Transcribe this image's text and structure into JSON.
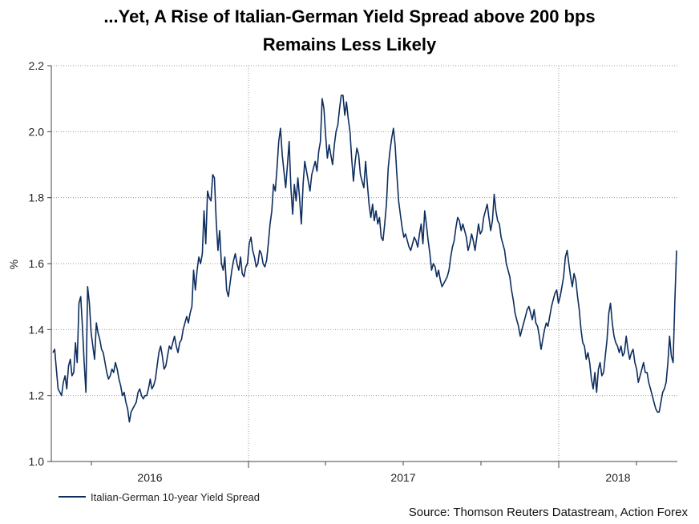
{
  "chart_data": {
    "type": "line",
    "title": "...Yet, A Rise of Italian-German Yield Spread above 200 bps",
    "subtitle": "Remains Less Likely",
    "ylabel": "%",
    "xlabel": "",
    "ylim": [
      1.0,
      2.2
    ],
    "yticks": [
      "1.0",
      "1.2",
      "1.4",
      "1.6",
      "1.8",
      "2.0",
      "2.2"
    ],
    "year_labels": [
      "2016",
      "2017",
      "2018"
    ],
    "grid": true,
    "legend_position": "bottom-left",
    "series": [
      {
        "name": "Italian-German 10-year Yield Spread",
        "color": "#0d2d5e",
        "values": [
          1.33,
          1.34,
          1.28,
          1.22,
          1.21,
          1.2,
          1.24,
          1.26,
          1.22,
          1.29,
          1.31,
          1.26,
          1.27,
          1.36,
          1.3,
          1.48,
          1.5,
          1.41,
          1.3,
          1.21,
          1.53,
          1.48,
          1.39,
          1.35,
          1.31,
          1.42,
          1.39,
          1.37,
          1.34,
          1.33,
          1.3,
          1.27,
          1.25,
          1.26,
          1.28,
          1.27,
          1.3,
          1.28,
          1.25,
          1.23,
          1.2,
          1.21,
          1.18,
          1.16,
          1.12,
          1.15,
          1.16,
          1.17,
          1.18,
          1.21,
          1.22,
          1.2,
          1.19,
          1.2,
          1.2,
          1.22,
          1.25,
          1.22,
          1.23,
          1.25,
          1.29,
          1.33,
          1.35,
          1.32,
          1.28,
          1.29,
          1.32,
          1.35,
          1.34,
          1.36,
          1.38,
          1.35,
          1.33,
          1.36,
          1.37,
          1.4,
          1.42,
          1.44,
          1.42,
          1.45,
          1.47,
          1.58,
          1.52,
          1.58,
          1.62,
          1.6,
          1.63,
          1.76,
          1.66,
          1.82,
          1.8,
          1.79,
          1.87,
          1.86,
          1.73,
          1.64,
          1.7,
          1.6,
          1.58,
          1.62,
          1.52,
          1.5,
          1.54,
          1.58,
          1.61,
          1.63,
          1.6,
          1.58,
          1.62,
          1.57,
          1.56,
          1.59,
          1.6,
          1.66,
          1.68,
          1.64,
          1.62,
          1.59,
          1.6,
          1.64,
          1.63,
          1.6,
          1.59,
          1.61,
          1.66,
          1.72,
          1.76,
          1.84,
          1.82,
          1.89,
          1.97,
          2.01,
          1.93,
          1.88,
          1.83,
          1.9,
          1.97,
          1.83,
          1.75,
          1.84,
          1.79,
          1.86,
          1.8,
          1.72,
          1.84,
          1.91,
          1.88,
          1.85,
          1.82,
          1.87,
          1.89,
          1.91,
          1.88,
          1.94,
          1.97,
          2.1,
          2.07,
          1.99,
          1.92,
          1.96,
          1.93,
          1.9,
          1.96,
          2.0,
          2.02,
          2.07,
          2.11,
          2.11,
          2.05,
          2.09,
          2.04,
          2.0,
          1.92,
          1.85,
          1.91,
          1.95,
          1.93,
          1.87,
          1.85,
          1.83,
          1.91,
          1.84,
          1.78,
          1.74,
          1.78,
          1.73,
          1.76,
          1.72,
          1.74,
          1.68,
          1.67,
          1.72,
          1.78,
          1.89,
          1.94,
          1.98,
          2.01,
          1.96,
          1.87,
          1.79,
          1.75,
          1.71,
          1.68,
          1.69,
          1.67,
          1.65,
          1.64,
          1.66,
          1.68,
          1.67,
          1.65,
          1.69,
          1.72,
          1.66,
          1.76,
          1.72,
          1.67,
          1.63,
          1.58,
          1.6,
          1.59,
          1.56,
          1.58,
          1.55,
          1.53,
          1.54,
          1.55,
          1.56,
          1.58,
          1.62,
          1.65,
          1.67,
          1.71,
          1.74,
          1.73,
          1.7,
          1.72,
          1.7,
          1.68,
          1.64,
          1.66,
          1.69,
          1.67,
          1.64,
          1.68,
          1.72,
          1.69,
          1.7,
          1.74,
          1.76,
          1.78,
          1.74,
          1.7,
          1.73,
          1.81,
          1.76,
          1.73,
          1.72,
          1.68,
          1.66,
          1.64,
          1.6,
          1.58,
          1.56,
          1.52,
          1.49,
          1.45,
          1.43,
          1.41,
          1.38,
          1.4,
          1.42,
          1.44,
          1.46,
          1.47,
          1.45,
          1.43,
          1.46,
          1.42,
          1.41,
          1.38,
          1.34,
          1.37,
          1.4,
          1.42,
          1.41,
          1.44,
          1.47,
          1.49,
          1.51,
          1.52,
          1.48,
          1.5,
          1.53,
          1.56,
          1.62,
          1.64,
          1.6,
          1.56,
          1.53,
          1.57,
          1.55,
          1.5,
          1.46,
          1.4,
          1.36,
          1.35,
          1.31,
          1.33,
          1.3,
          1.25,
          1.22,
          1.27,
          1.21,
          1.28,
          1.3,
          1.26,
          1.27,
          1.32,
          1.37,
          1.45,
          1.48,
          1.42,
          1.38,
          1.36,
          1.35,
          1.33,
          1.35,
          1.32,
          1.33,
          1.38,
          1.34,
          1.31,
          1.33,
          1.34,
          1.3,
          1.28,
          1.24,
          1.26,
          1.28,
          1.3,
          1.27,
          1.27,
          1.24,
          1.22,
          1.2,
          1.18,
          1.16,
          1.15,
          1.15,
          1.18,
          1.21,
          1.22,
          1.24,
          1.3,
          1.38,
          1.32,
          1.3,
          1.48,
          1.64
        ]
      }
    ],
    "source": "Source: Thomson Reuters Datastream, Action Forex"
  }
}
